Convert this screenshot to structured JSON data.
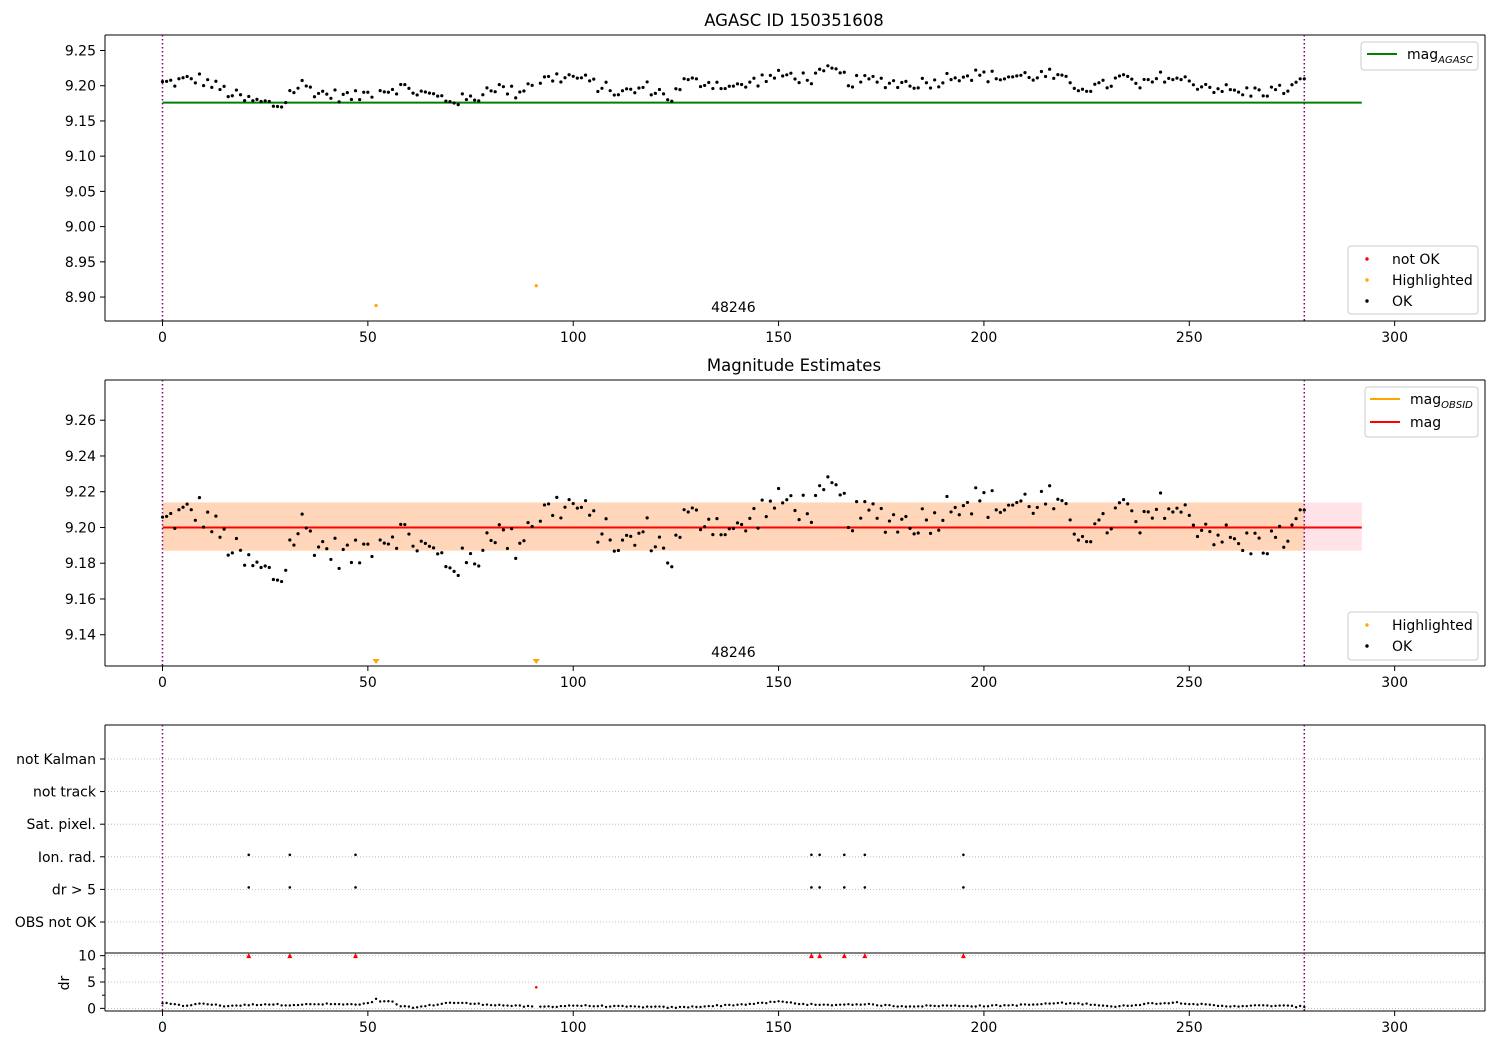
{
  "chart_data": [
    {
      "type": "scatter",
      "title": "AGASC ID 150351608",
      "xlim": [
        -14,
        322
      ],
      "ylim": [
        8.866,
        9.272
      ],
      "xticks": [
        0,
        50,
        100,
        150,
        200,
        250,
        300
      ],
      "yticks": [
        8.9,
        8.95,
        9.0,
        9.05,
        9.1,
        9.15,
        9.2,
        9.25
      ],
      "ytick_labels": [
        "8.90",
        "8.95",
        "9.00",
        "9.05",
        "9.10",
        "9.15",
        "9.20",
        "9.25"
      ],
      "observation_boundaries": [
        0,
        278
      ],
      "obsid_label": "48246",
      "obsid_label_x": 139,
      "reference_lines": [
        {
          "name": "mag$_{AGASC}$",
          "display": "mag",
          "sub": "AGASC",
          "value": 9.176,
          "x": [
            0,
            292
          ],
          "color": "#008000"
        }
      ],
      "series": [
        {
          "name": "not OK",
          "color": "#ff0000",
          "x": [],
          "y": []
        },
        {
          "name": "Highlighted",
          "color": "#ffa500",
          "x": [
            52,
            91
          ],
          "y": [
            8.888,
            8.916
          ]
        },
        {
          "name": "OK",
          "color": "#000000",
          "generated_from": "obs_mag_series"
        }
      ],
      "legend_top_right": [
        "mag_AGASC"
      ],
      "legend_bottom_right": [
        "not OK",
        "Highlighted",
        "OK"
      ]
    },
    {
      "type": "scatter",
      "title": "Magnitude Estimates",
      "xlim": [
        -14,
        322
      ],
      "ylim": [
        9.1225,
        9.2825
      ],
      "xticks": [
        0,
        50,
        100,
        150,
        200,
        250,
        300
      ],
      "yticks": [
        9.14,
        9.16,
        9.18,
        9.2,
        9.22,
        9.24,
        9.26
      ],
      "ytick_labels": [
        "9.14",
        "9.16",
        "9.18",
        "9.20",
        "9.22",
        "9.24",
        "9.26"
      ],
      "observation_boundaries": [
        0,
        278
      ],
      "obsid_label": "48246",
      "obsid_label_x": 139,
      "mag_line": {
        "name": "mag",
        "value": 9.2,
        "x": [
          0,
          292
        ],
        "color": "#ff0000"
      },
      "mag_band": {
        "low": 9.187,
        "high": 9.214,
        "x": [
          0,
          292
        ],
        "color": "#ffc0cb"
      },
      "obsid_mag": {
        "name": "mag$_{OBSID}$",
        "display": "mag",
        "sub": "OBSID",
        "value": 9.2,
        "low": 9.187,
        "high": 9.214,
        "x": [
          0,
          278
        ],
        "color": "#ffa500"
      },
      "highlighted_markers": {
        "x": [
          52,
          91
        ],
        "y_at_bottom": true,
        "marker": "triangle-down",
        "color": "#ffa500"
      },
      "legend_top_right": [
        "mag_OBSID",
        "mag"
      ],
      "legend_bottom_right": [
        "Highlighted",
        "OK"
      ]
    },
    {
      "type": "scatter",
      "title": "",
      "xlim": [
        -14,
        322
      ],
      "xticks": [
        0,
        50,
        100,
        150,
        200,
        250,
        300
      ],
      "observation_boundaries": [
        0,
        278
      ],
      "flag_rows": [
        "not Kalman",
        "not track",
        "Sat. pixel.",
        "Ion. rad.",
        "dr > 5",
        "OBS not OK"
      ],
      "flags": {
        "not Kalman": [],
        "not track": [],
        "Sat. pixel.": [],
        "Ion. rad.": [
          21,
          31,
          47,
          158,
          160,
          166,
          171,
          195
        ],
        "dr > 5": [
          21,
          31,
          47,
          158,
          160,
          166,
          171,
          195
        ],
        "OBS not OK": []
      }
    },
    {
      "type": "scatter",
      "title": "",
      "ylabel": "dr",
      "xlim": [
        -14,
        322
      ],
      "ylim": [
        -0.5,
        10.5
      ],
      "xticks": [
        0,
        50,
        100,
        150,
        200,
        250,
        300
      ],
      "yticks": [
        0,
        5,
        10
      ],
      "observation_boundaries": [
        0,
        278
      ],
      "dr_clipped": {
        "x": [
          21,
          31,
          47,
          158,
          160,
          166,
          171,
          195
        ],
        "y": 10,
        "color": "#ff0000",
        "marker": "triangle-up"
      },
      "dr_highlight": {
        "x": [
          91
        ],
        "y": [
          4.0
        ],
        "color": "#ff0000"
      },
      "dr_spike": {
        "x": [
          52
        ],
        "y": [
          1.8
        ]
      }
    }
  ],
  "obs_mag_series": {
    "x_start": 0,
    "x_end": 278,
    "mag_knots": [
      [
        0,
        9.203
      ],
      [
        5,
        9.207
      ],
      [
        9,
        9.21
      ],
      [
        14,
        9.196
      ],
      [
        20,
        9.18
      ],
      [
        26,
        9.174
      ],
      [
        29,
        9.171
      ],
      [
        31,
        9.19
      ],
      [
        34,
        9.202
      ],
      [
        38,
        9.19
      ],
      [
        44,
        9.185
      ],
      [
        47,
        9.184
      ],
      [
        52,
        9.193
      ],
      [
        58,
        9.198
      ],
      [
        64,
        9.188
      ],
      [
        70,
        9.18
      ],
      [
        76,
        9.18
      ],
      [
        80,
        9.2
      ],
      [
        86,
        9.19
      ],
      [
        90,
        9.205
      ],
      [
        96,
        9.212
      ],
      [
        101,
        9.212
      ],
      [
        106,
        9.2
      ],
      [
        112,
        9.189
      ],
      [
        118,
        9.198
      ],
      [
        124,
        9.183
      ],
      [
        127,
        9.205
      ],
      [
        133,
        9.205
      ],
      [
        140,
        9.197
      ],
      [
        146,
        9.21
      ],
      [
        152,
        9.215
      ],
      [
        158,
        9.21
      ],
      [
        163,
        9.222
      ],
      [
        168,
        9.205
      ],
      [
        173,
        9.208
      ],
      [
        180,
        9.203
      ],
      [
        188,
        9.205
      ],
      [
        193,
        9.216
      ],
      [
        198,
        9.215
      ],
      [
        204,
        9.212
      ],
      [
        210,
        9.214
      ],
      [
        216,
        9.215
      ],
      [
        222,
        9.2
      ],
      [
        228,
        9.197
      ],
      [
        234,
        9.212
      ],
      [
        238,
        9.198
      ],
      [
        244,
        9.214
      ],
      [
        250,
        9.205
      ],
      [
        256,
        9.198
      ],
      [
        262,
        9.19
      ],
      [
        268,
        9.192
      ],
      [
        273,
        9.194
      ],
      [
        278,
        9.205
      ]
    ],
    "dr_knots": [
      [
        0,
        1.0
      ],
      [
        5,
        0.5
      ],
      [
        10,
        0.9
      ],
      [
        15,
        0.45
      ],
      [
        20,
        0.6
      ],
      [
        25,
        0.8
      ],
      [
        30,
        0.65
      ],
      [
        40,
        0.8
      ],
      [
        48,
        0.7
      ],
      [
        52,
        1.2
      ],
      [
        56,
        1.3
      ],
      [
        58,
        0.3
      ],
      [
        62,
        0.2
      ],
      [
        70,
        1.1
      ],
      [
        80,
        0.7
      ],
      [
        85,
        0.5
      ],
      [
        90,
        0.3
      ],
      [
        95,
        0.35
      ],
      [
        100,
        0.55
      ],
      [
        110,
        0.35
      ],
      [
        120,
        0.25
      ],
      [
        125,
        0.15
      ],
      [
        135,
        0.5
      ],
      [
        145,
        0.9
      ],
      [
        150,
        1.3
      ],
      [
        155,
        0.9
      ],
      [
        160,
        0.6
      ],
      [
        170,
        0.8
      ],
      [
        180,
        0.4
      ],
      [
        190,
        0.5
      ],
      [
        200,
        0.45
      ],
      [
        212,
        0.7
      ],
      [
        218,
        1.0
      ],
      [
        226,
        0.8
      ],
      [
        232,
        0.3
      ],
      [
        240,
        0.9
      ],
      [
        247,
        1.1
      ],
      [
        252,
        0.8
      ],
      [
        258,
        0.4
      ],
      [
        265,
        0.5
      ],
      [
        272,
        0.5
      ],
      [
        276,
        0.35
      ],
      [
        278,
        0.3
      ]
    ]
  }
}
